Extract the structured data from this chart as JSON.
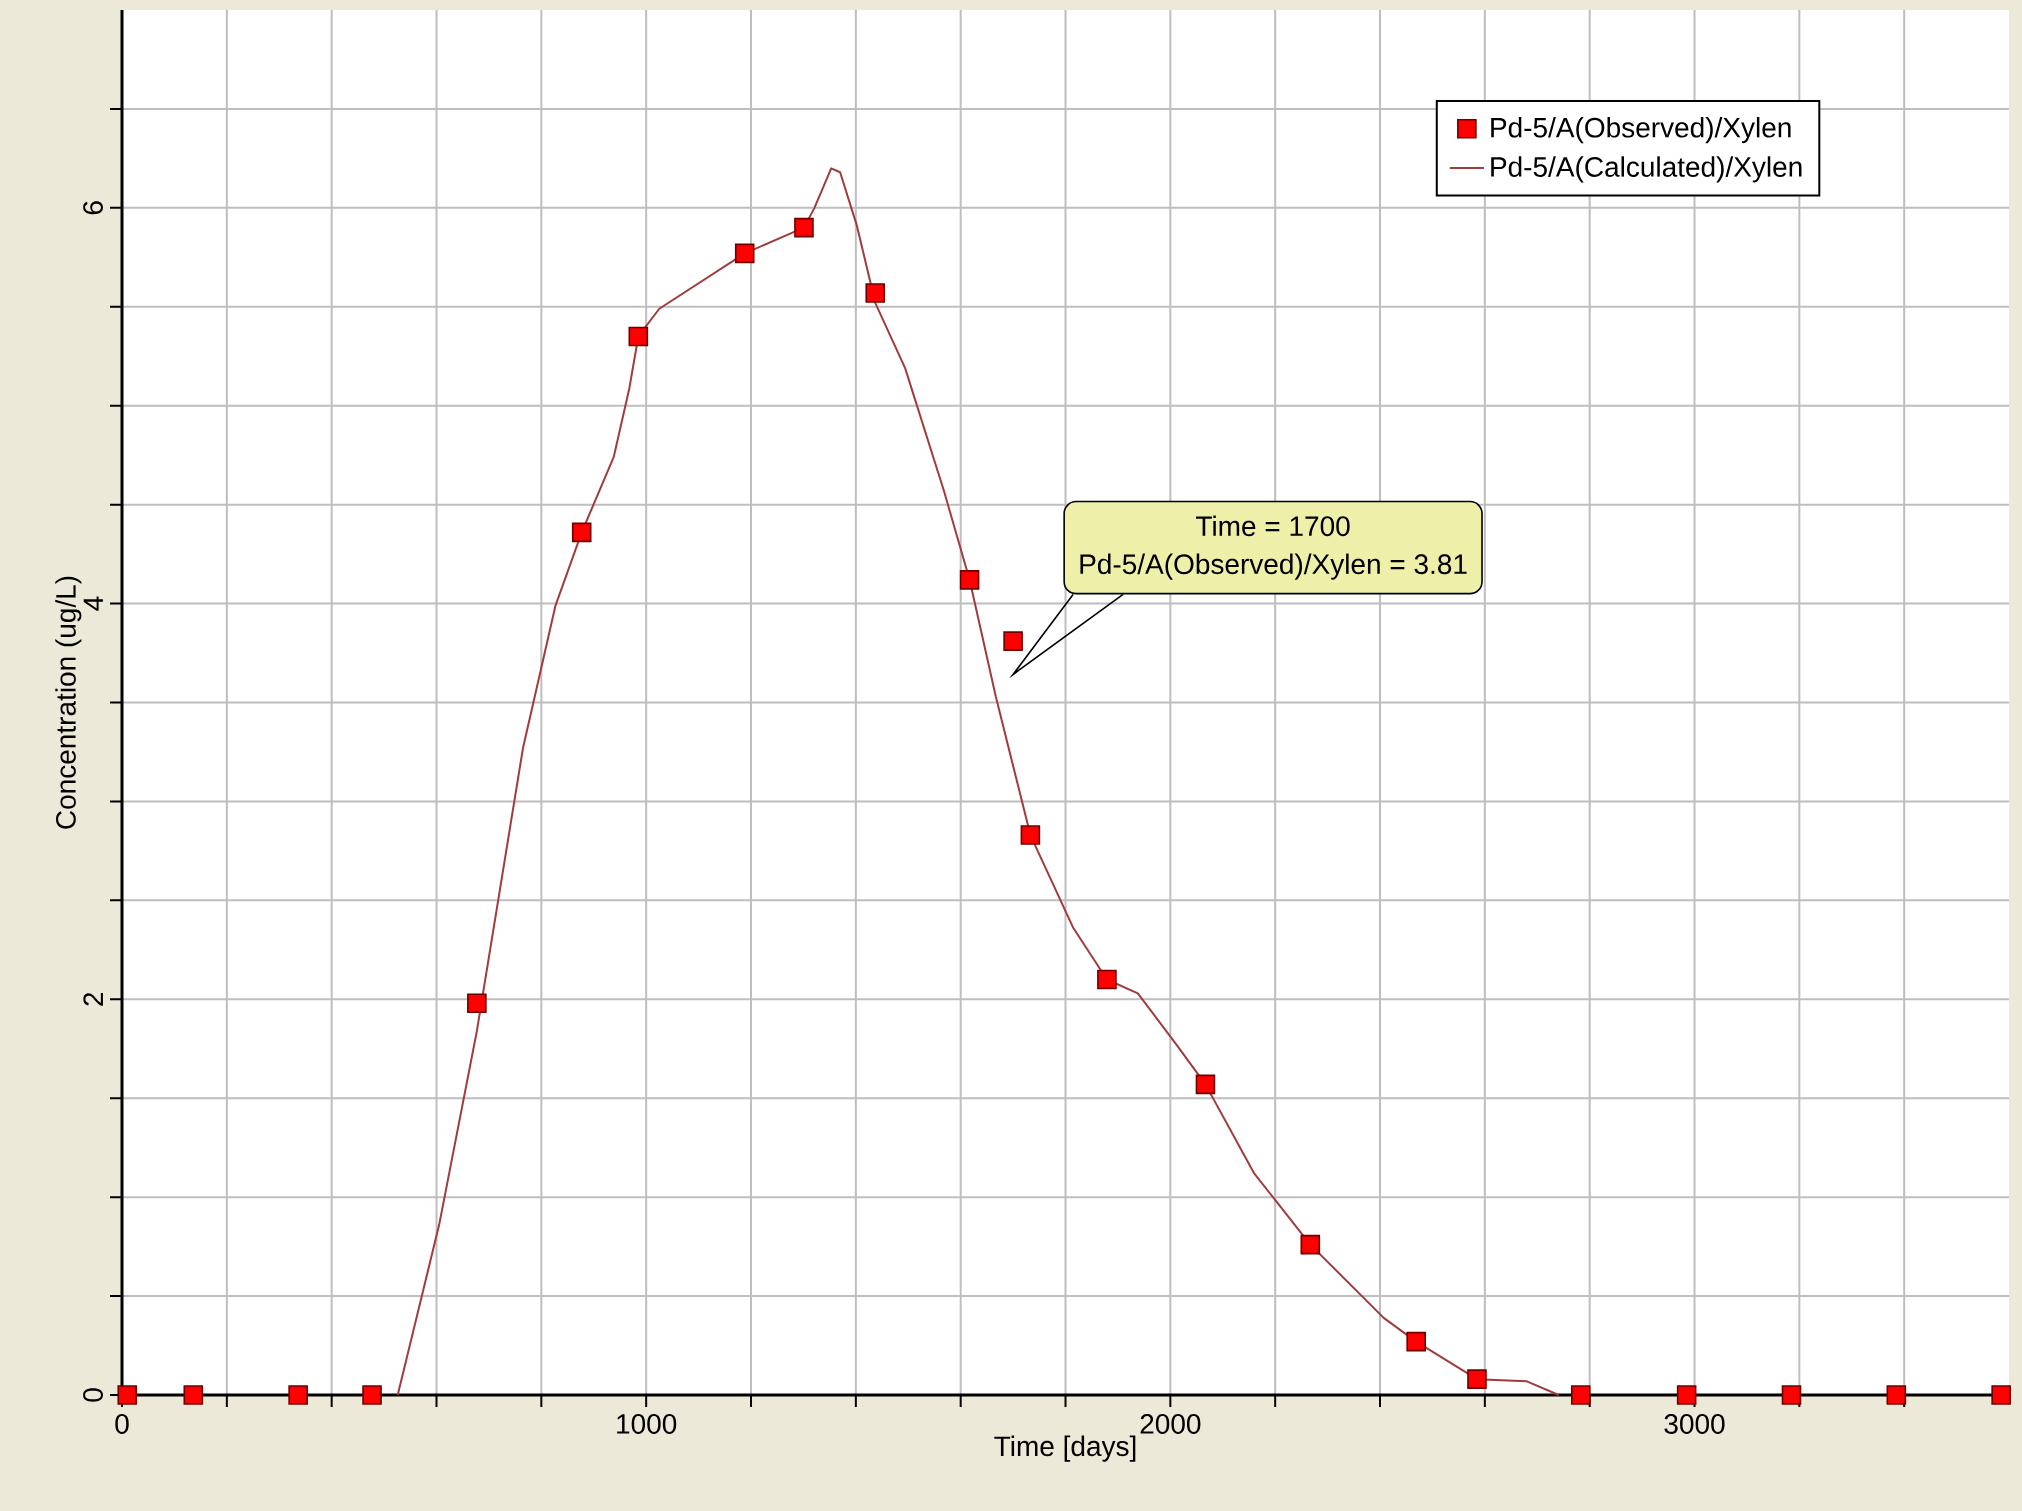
{
  "chart_data": {
    "type": "line",
    "xlabel": "Time  [days]",
    "ylabel": "Concentration (ug/L)",
    "xlim": [
      0,
      3600
    ],
    "ylim": [
      0,
      7
    ],
    "xticks": [
      0,
      {
        "value": 200,
        "label": null
      },
      {
        "value": 400,
        "label": null
      },
      {
        "value": 600,
        "label": null
      },
      {
        "value": 800,
        "label": null
      },
      1000,
      {
        "value": 1200,
        "label": null
      },
      {
        "value": 1400,
        "label": null
      },
      {
        "value": 1600,
        "label": null
      },
      {
        "value": 1800,
        "label": null
      },
      2000,
      {
        "value": 2200,
        "label": null
      },
      {
        "value": 2400,
        "label": null
      },
      {
        "value": 2600,
        "label": null
      },
      {
        "value": 2800,
        "label": null
      },
      3000,
      {
        "value": 3200,
        "label": null
      },
      {
        "value": 3400,
        "label": null
      }
    ],
    "yticks": [
      0,
      {
        "value": 0.5,
        "label": null
      },
      {
        "value": 1,
        "label": null
      },
      {
        "value": 1.5,
        "label": null
      },
      2,
      {
        "value": 2.5,
        "label": null
      },
      {
        "value": 3,
        "label": null
      },
      {
        "value": 3.5,
        "label": null
      },
      4,
      {
        "value": 4.5,
        "label": null
      },
      {
        "value": 5,
        "label": null
      },
      {
        "value": 5.5,
        "label": null
      },
      6,
      {
        "value": 6.5,
        "label": null
      }
    ],
    "grid": true,
    "legend": "top right",
    "series": [
      {
        "name": "Pd-5/A(Observed)/Xylen",
        "type": "scatter",
        "marker": "square",
        "color": "#ff0000",
        "x": [
          10,
          136,
          336,
          477,
          677,
          877,
          985,
          1188,
          1301,
          1437,
          1617,
          1700,
          1733,
          1879,
          2067,
          2267,
          2469,
          2585,
          2783,
          2985,
          3185,
          3385,
          3585
        ],
        "values": [
          0,
          0,
          0,
          0,
          1.98,
          4.36,
          5.35,
          5.77,
          5.9,
          5.57,
          4.12,
          3.81,
          2.83,
          2.1,
          1.57,
          0.76,
          0.27,
          0.08,
          0,
          0,
          0,
          0,
          0
        ]
      },
      {
        "name": "Pd-5/A(Calculated)/Xylen",
        "marker": "none",
        "color": "#a03c3c",
        "x": [
          526,
          605,
          677,
          765,
          827,
          877,
          938,
          968,
          985,
          1025,
          1188,
          1301,
          1321,
          1353,
          1370,
          1402,
          1437,
          1494,
          1568,
          1617,
          1667,
          1733,
          1815,
          1879,
          1938,
          2012,
          2067,
          2160,
          2267,
          2407,
          2469,
          2585,
          2679,
          2741
        ],
        "values": [
          0,
          0.86,
          1.84,
          3.27,
          3.99,
          4.36,
          4.74,
          5.09,
          5.35,
          5.49,
          5.77,
          5.9,
          6.0,
          6.2,
          6.18,
          5.91,
          5.52,
          5.19,
          4.57,
          4.12,
          3.53,
          2.83,
          2.36,
          2.1,
          2.03,
          1.77,
          1.57,
          1.12,
          0.76,
          0.39,
          0.27,
          0.08,
          0.07,
          0
        ]
      }
    ],
    "annotations": [
      "Time = 1700",
      "Pd-5/A(Observed)/Xylen = 3.81"
    ]
  }
}
